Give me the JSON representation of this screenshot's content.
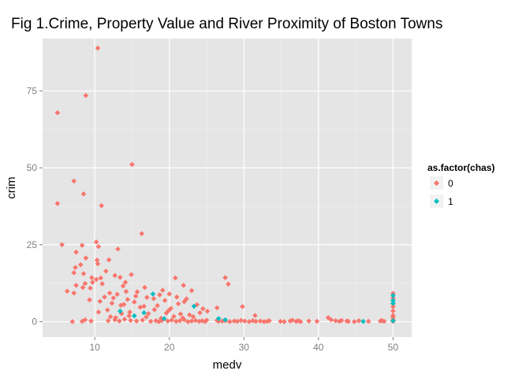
{
  "chart_data": {
    "type": "scatter",
    "title": "Fig 1.Crime, Property Value and River Proximity of Boston Towns",
    "xlabel": "medv",
    "ylabel": "crim",
    "xlim": [
      3,
      52.5
    ],
    "ylim": [
      -5,
      92
    ],
    "xticks": [
      10,
      20,
      30,
      40,
      50
    ],
    "xtick_labels": [
      "10",
      "20",
      "30",
      "40",
      "50"
    ],
    "yticks": [
      0,
      25,
      50,
      75
    ],
    "ytick_labels": [
      "0",
      "25",
      "50",
      "75"
    ],
    "grid": true,
    "legend": {
      "title": "as.factor(chas)",
      "placement": "right",
      "items": [
        {
          "label": "0",
          "color": "#F8766D"
        },
        {
          "label": "1",
          "color": "#00BFC4"
        }
      ]
    },
    "series": [
      {
        "name": "0",
        "color": "#F8766D",
        "points": [
          [
            10.4,
            88.9
          ],
          [
            8.8,
            73.5
          ],
          [
            5.0,
            67.9
          ],
          [
            15.0,
            51.1
          ],
          [
            7.2,
            45.7
          ],
          [
            8.5,
            41.5
          ],
          [
            10.9,
            37.7
          ],
          [
            5.0,
            38.4
          ],
          [
            16.3,
            28.6
          ],
          [
            10.2,
            25.9
          ],
          [
            5.6,
            25.0
          ],
          [
            10.5,
            24.4
          ],
          [
            8.3,
            24.8
          ],
          [
            13.1,
            23.6
          ],
          [
            7.5,
            22.6
          ],
          [
            8.8,
            20.7
          ],
          [
            11.9,
            20.1
          ],
          [
            10.3,
            20.0
          ],
          [
            8.1,
            18.5
          ],
          [
            10.4,
            18.8
          ],
          [
            7.4,
            17.6
          ],
          [
            7.2,
            15.9
          ],
          [
            8.5,
            15.6
          ],
          [
            9.6,
            14.3
          ],
          [
            10.8,
            14.2
          ],
          [
            12.7,
            15.0
          ],
          [
            14.9,
            15.3
          ],
          [
            11.5,
            16.4
          ],
          [
            13.4,
            14.4
          ],
          [
            10.2,
            13.7
          ],
          [
            8.7,
            12.4
          ],
          [
            7.5,
            11.8
          ],
          [
            9.7,
            12.8
          ],
          [
            6.3,
            9.9
          ],
          [
            7.2,
            9.3
          ],
          [
            8.4,
            11.1
          ],
          [
            9.4,
            10.9
          ],
          [
            11.0,
            12.3
          ],
          [
            13.8,
            11.6
          ],
          [
            12.0,
            9.3
          ],
          [
            16.7,
            11.1
          ],
          [
            19.1,
            10.2
          ],
          [
            20.8,
            14.2
          ],
          [
            21.9,
            11.8
          ],
          [
            23.0,
            10.1
          ],
          [
            27.5,
            14.3
          ],
          [
            27.9,
            12.2
          ],
          [
            14.1,
            12.8
          ],
          [
            15.7,
            9.7
          ],
          [
            17.9,
            7.5
          ],
          [
            12.3,
            6.0
          ],
          [
            13.5,
            5.3
          ],
          [
            14.4,
            7.2
          ],
          [
            15.3,
            6.4
          ],
          [
            16.6,
            5.0
          ],
          [
            18.4,
            5.2
          ],
          [
            19.4,
            6.9
          ],
          [
            20.2,
            4.3
          ],
          [
            21.2,
            5.8
          ],
          [
            22.3,
            7.4
          ],
          [
            23.7,
            5.5
          ],
          [
            24.5,
            4.2
          ],
          [
            25.1,
            3.4
          ],
          [
            19.9,
            3.6
          ],
          [
            21.5,
            2.5
          ],
          [
            22.7,
            2.2
          ],
          [
            17.2,
            2.6
          ],
          [
            14.7,
            3.1
          ],
          [
            12.8,
            1.3
          ],
          [
            11.7,
            3.8
          ],
          [
            13.0,
            8.9
          ],
          [
            14.2,
            9.8
          ],
          [
            15.5,
            8.3
          ],
          [
            17.0,
            7.9
          ],
          [
            18.7,
            8.7
          ],
          [
            20.0,
            9.0
          ],
          [
            21.0,
            8.0
          ],
          [
            22.0,
            6.5
          ],
          [
            12.5,
            7.7
          ],
          [
            11.3,
            8.0
          ],
          [
            9.3,
            7.1
          ],
          [
            10.7,
            6.6
          ],
          [
            13.9,
            5.6
          ],
          [
            16.1,
            4.7
          ],
          [
            18.0,
            3.9
          ],
          [
            19.6,
            2.8
          ],
          [
            20.6,
            1.7
          ],
          [
            21.8,
            1.2
          ],
          [
            23.2,
            1.6
          ],
          [
            24.1,
            2.9
          ],
          [
            14.6,
            1.9
          ],
          [
            16.9,
            1.5
          ],
          [
            18.9,
            1.1
          ],
          [
            19.3,
            0.9
          ],
          [
            7.0,
            0.0
          ],
          [
            8.3,
            0.1
          ],
          [
            11.8,
            0.3
          ],
          [
            12.7,
            0.6
          ],
          [
            13.3,
            0.2
          ],
          [
            14.0,
            0.8
          ],
          [
            14.8,
            0.4
          ],
          [
            15.6,
            0.2
          ],
          [
            16.4,
            0.5
          ],
          [
            17.5,
            0.1
          ],
          [
            18.2,
            0.3
          ],
          [
            18.6,
            0.0
          ],
          [
            19.0,
            0.4
          ],
          [
            19.8,
            0.2
          ],
          [
            20.3,
            0.5
          ],
          [
            20.9,
            0.1
          ],
          [
            21.4,
            0.3
          ],
          [
            22.0,
            0.6
          ],
          [
            22.5,
            0.0
          ],
          [
            23.0,
            0.2
          ],
          [
            23.5,
            0.4
          ],
          [
            24.0,
            0.1
          ],
          [
            24.4,
            0.3
          ],
          [
            24.8,
            0.0
          ],
          [
            25.0,
            0.5
          ],
          [
            26.4,
            0.4
          ],
          [
            26.6,
            0.1
          ],
          [
            27.1,
            0.2
          ],
          [
            27.5,
            0.3
          ],
          [
            28.1,
            0.0
          ],
          [
            28.7,
            0.2
          ],
          [
            29.1,
            0.1
          ],
          [
            29.6,
            0.4
          ],
          [
            30.1,
            0.2
          ],
          [
            30.7,
            0.0
          ],
          [
            31.2,
            0.3
          ],
          [
            31.6,
            0.1
          ],
          [
            32.2,
            0.2
          ],
          [
            32.7,
            0.0
          ],
          [
            33.1,
            0.1
          ],
          [
            33.4,
            0.3
          ],
          [
            34.9,
            0.1
          ],
          [
            35.4,
            0.0
          ],
          [
            36.2,
            0.2
          ],
          [
            36.5,
            0.5
          ],
          [
            37.0,
            0.1
          ],
          [
            37.3,
            0.3
          ],
          [
            37.6,
            0.0
          ],
          [
            38.7,
            0.2
          ],
          [
            39.8,
            0.1
          ],
          [
            41.3,
            1.3
          ],
          [
            41.7,
            0.6
          ],
          [
            42.3,
            0.3
          ],
          [
            42.8,
            0.1
          ],
          [
            43.1,
            0.4
          ],
          [
            43.8,
            0.2
          ],
          [
            44.0,
            0.1
          ],
          [
            44.8,
            0.0
          ],
          [
            45.4,
            0.3
          ],
          [
            46.7,
            0.1
          ],
          [
            48.3,
            0.2
          ],
          [
            48.5,
            0.4
          ],
          [
            48.8,
            0.1
          ],
          [
            29.8,
            4.9
          ],
          [
            26.4,
            4.5
          ],
          [
            10.5,
            3.1
          ],
          [
            50.0,
            9.2
          ],
          [
            50.0,
            7.7
          ],
          [
            50.0,
            5.8
          ],
          [
            50.0,
            4.9
          ],
          [
            50.0,
            3.5
          ],
          [
            50.0,
            2.0
          ],
          [
            50.0,
            1.4
          ],
          [
            50.0,
            0.6
          ],
          [
            50.0,
            0.1
          ],
          [
            31.5,
            2.0
          ],
          [
            9.5,
            0.2
          ],
          [
            8.7,
            0.6
          ],
          [
            12.1,
            1.6
          ],
          [
            13.6,
            2.6
          ]
        ]
      },
      {
        "name": "1",
        "color": "#00BFC4",
        "points": [
          [
            13.4,
            3.4
          ],
          [
            15.3,
            1.9
          ],
          [
            16.6,
            2.9
          ],
          [
            17.8,
            9.0
          ],
          [
            19.3,
            1.0
          ],
          [
            23.3,
            5.0
          ],
          [
            26.6,
            1.0
          ],
          [
            27.5,
            0.6
          ],
          [
            46.0,
            0.1
          ],
          [
            50.0,
            8.5
          ],
          [
            50.0,
            6.9
          ],
          [
            50.0,
            6.0
          ],
          [
            50.0,
            0.3
          ]
        ]
      }
    ]
  }
}
